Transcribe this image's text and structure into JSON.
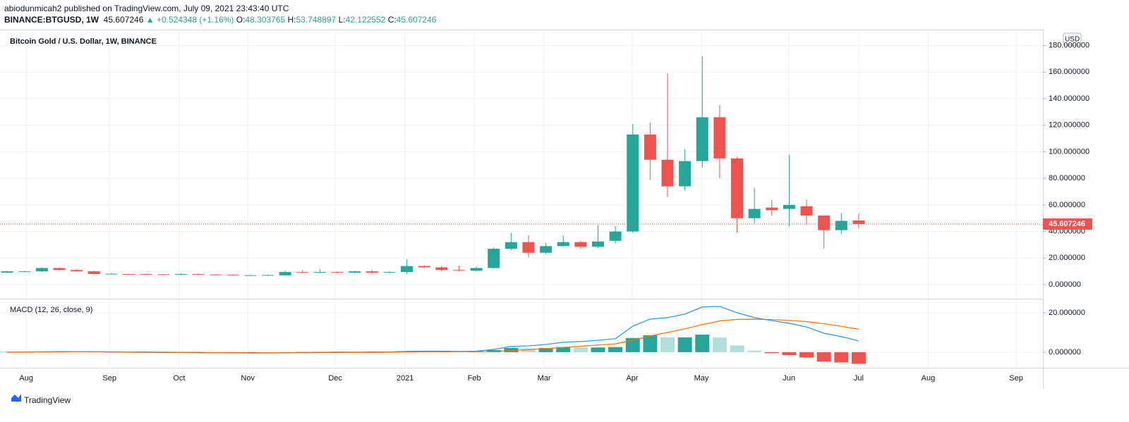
{
  "header": {
    "published": "abiodunmicah2 published on TradingView.com, July 09, 2021 23:43:40 UTC",
    "symbol": "BINANCE:BTGUSD, 1W",
    "arrow": "▲",
    "change": "+0.524348 (+1.16%)",
    "ohlc_labels": [
      "O:",
      "H:",
      "L:",
      "C:"
    ]
  },
  "footer": {
    "brand": "TradingView"
  },
  "chart_data": [
    {
      "type": "candlestick",
      "title": "Bitcoin Gold / U.S. Dollar, 1W, BINANCE",
      "currency": "USD",
      "up_color": "#26a69a",
      "down_color": "#ef5350",
      "grid": true,
      "categories": [
        null,
        null,
        null,
        null,
        null,
        null,
        null,
        null,
        null,
        null,
        null,
        null,
        null,
        null,
        null,
        null,
        null,
        null,
        null,
        null,
        null,
        null,
        null,
        null,
        null,
        null,
        null,
        null,
        null,
        null,
        null,
        null,
        null,
        null,
        null,
        null,
        null,
        null,
        null,
        null,
        null,
        null,
        null,
        null,
        null,
        null,
        null,
        null,
        null,
        null
      ],
      "open": [
        9,
        9.5,
        10,
        12.5,
        11,
        10,
        8,
        8,
        8,
        7.8,
        7.5,
        8,
        7.6,
        7.5,
        7,
        7,
        7,
        9.5,
        9,
        9.5,
        9,
        10,
        9,
        9.5,
        14,
        13,
        11,
        10.5,
        12.5,
        27,
        32,
        24,
        29,
        32,
        28.5,
        33,
        40,
        113,
        94,
        74,
        93,
        126,
        95,
        50,
        58,
        57,
        59,
        52,
        41,
        48.303765
      ],
      "high": [
        10.5,
        10.5,
        13,
        12.8,
        11.5,
        10.5,
        8.8,
        8.3,
        8.2,
        8,
        8.5,
        8.2,
        8,
        7.8,
        7.5,
        7.6,
        10.5,
        11,
        11.5,
        10,
        10.5,
        11,
        10,
        19,
        14.5,
        14,
        14.5,
        13.5,
        28,
        39,
        37,
        31.5,
        37,
        33,
        45,
        44,
        121,
        122,
        159,
        102,
        172,
        135,
        96,
        73,
        64,
        98,
        64,
        52,
        54,
        53.748897
      ],
      "low": [
        8.8,
        9.3,
        9.5,
        10.5,
        9.8,
        7.5,
        7.6,
        7.4,
        7.2,
        7.1,
        7.3,
        7.2,
        7.1,
        6.8,
        6.8,
        6.9,
        6.9,
        8.5,
        8.7,
        8.6,
        8.7,
        8.5,
        8.6,
        8,
        12.5,
        10,
        10,
        10,
        12,
        26,
        20.5,
        23,
        28.5,
        27,
        27.5,
        31,
        39,
        79,
        66,
        71,
        88,
        80,
        39,
        46,
        52,
        44,
        45,
        27,
        38,
        42.122552
      ],
      "close": [
        10,
        10,
        12.5,
        11,
        10,
        8,
        8.2,
        7.8,
        7.5,
        7.4,
        8,
        7.5,
        7.4,
        7,
        7.1,
        7.2,
        9.5,
        9,
        9.5,
        9,
        10,
        9,
        9.5,
        14,
        13,
        11,
        10.5,
        12.5,
        27,
        32,
        24,
        29,
        32,
        28.5,
        32.5,
        40,
        113,
        94,
        74,
        93,
        126,
        95,
        50,
        57,
        56,
        60,
        52,
        41,
        48,
        45.607246
      ],
      "ylim": [
        -10.6,
        192
      ],
      "yticks": [
        {
          "value": 0,
          "label": "0.000000"
        },
        {
          "value": 20,
          "label": "20.000000"
        },
        {
          "value": 40,
          "label": "40.000000"
        },
        {
          "value": 60,
          "label": "60.000000"
        },
        {
          "value": 80,
          "label": "80.000000"
        },
        {
          "value": 100,
          "label": "100.000000"
        },
        {
          "value": 120,
          "label": "120.000000"
        },
        {
          "value": 140,
          "label": "140.000000"
        },
        {
          "value": 160,
          "label": "160.000000"
        },
        {
          "value": 180,
          "label": "180.000000"
        }
      ],
      "xlim": [
        -0.41,
        59.6
      ],
      "xticks": [
        {
          "value": 1.1,
          "label": "Aug"
        },
        {
          "value": 5.89,
          "label": "Sep"
        },
        {
          "value": 9.9,
          "label": "Oct"
        },
        {
          "value": 13.85,
          "label": "Nov"
        },
        {
          "value": 18.88,
          "label": "Dec"
        },
        {
          "value": 22.9,
          "label": "2021"
        },
        {
          "value": 26.88,
          "label": "Feb"
        },
        {
          "value": 30.9,
          "label": "Mar"
        },
        {
          "value": 35.97,
          "label": "Apr"
        },
        {
          "value": 39.95,
          "label": "May"
        },
        {
          "value": 44.99,
          "label": "Jun"
        },
        {
          "value": 49.0,
          "label": "Jul"
        },
        {
          "value": 53.0,
          "label": "Aug"
        },
        {
          "value": 58.06,
          "label": "Sep"
        }
      ]
    },
    {
      "type": "macd",
      "title": "MACD (12, 26, close, 9)",
      "series": [
        {
          "color": "#2196f3",
          "values": [
            0.1,
            0.1,
            0.2,
            0.3,
            0.3,
            0.2,
            0.1,
            0,
            -0.1,
            -0.2,
            -0.2,
            -0.3,
            -0.3,
            -0.3,
            -0.4,
            -0.4,
            -0.3,
            -0.2,
            -0.1,
            0,
            0,
            0.1,
            0.1,
            0.4,
            0.5,
            0.5,
            0.4,
            0.5,
            1.4,
            2.9,
            3.2,
            3.9,
            5,
            5.4,
            6,
            6.8,
            13.2,
            16.8,
            17.5,
            19.3,
            22.9,
            23.2,
            20,
            17.5,
            16,
            14.6,
            12.8,
            9.6,
            7.9,
            5.7
          ]
        },
        {
          "color": "#ff6d00",
          "values": [
            0,
            0,
            0.1,
            0.1,
            0.2,
            0.2,
            0.2,
            0.1,
            0.1,
            0,
            -0.1,
            -0.1,
            -0.2,
            -0.2,
            -0.2,
            -0.3,
            -0.3,
            -0.3,
            -0.2,
            -0.2,
            -0.1,
            -0.1,
            0,
            0.1,
            0.2,
            0.2,
            0.3,
            0.3,
            0.3,
            0.8,
            1.3,
            1.8,
            2.4,
            3,
            3.6,
            4.2,
            6,
            8.2,
            10,
            11.8,
            14,
            15.8,
            16.6,
            16.7,
            16.5,
            16.1,
            15.5,
            14.4,
            13.1,
            11.6
          ]
        }
      ],
      "histogram": {
        "colors": [
          "#26a69a",
          "#b2dfdb",
          "#ffcdd2",
          "#ef5350"
        ],
        "values": [
          0.1,
          0.1,
          0.1,
          0.2,
          0.1,
          0,
          -0.1,
          -0.1,
          -0.2,
          -0.2,
          -0.1,
          -0.2,
          -0.1,
          -0.1,
          -0.2,
          -0.1,
          0,
          0.1,
          0.1,
          0.2,
          0.1,
          0.2,
          0.1,
          0.3,
          0.3,
          0.3,
          0.1,
          0.2,
          1.1,
          2.1,
          1.9,
          2.1,
          2.6,
          2.4,
          2.4,
          2.6,
          7.2,
          8.6,
          7.5,
          7.5,
          8.9,
          7.4,
          3.4,
          0.8,
          -0.5,
          -1.5,
          -2.7,
          -4.8,
          -5.2,
          -5.9
        ]
      },
      "ylim": [
        -7.9,
        27.1
      ],
      "yticks": [
        {
          "value": 0,
          "label": "0.000000"
        },
        {
          "value": 20,
          "label": "20.000000"
        }
      ]
    }
  ]
}
